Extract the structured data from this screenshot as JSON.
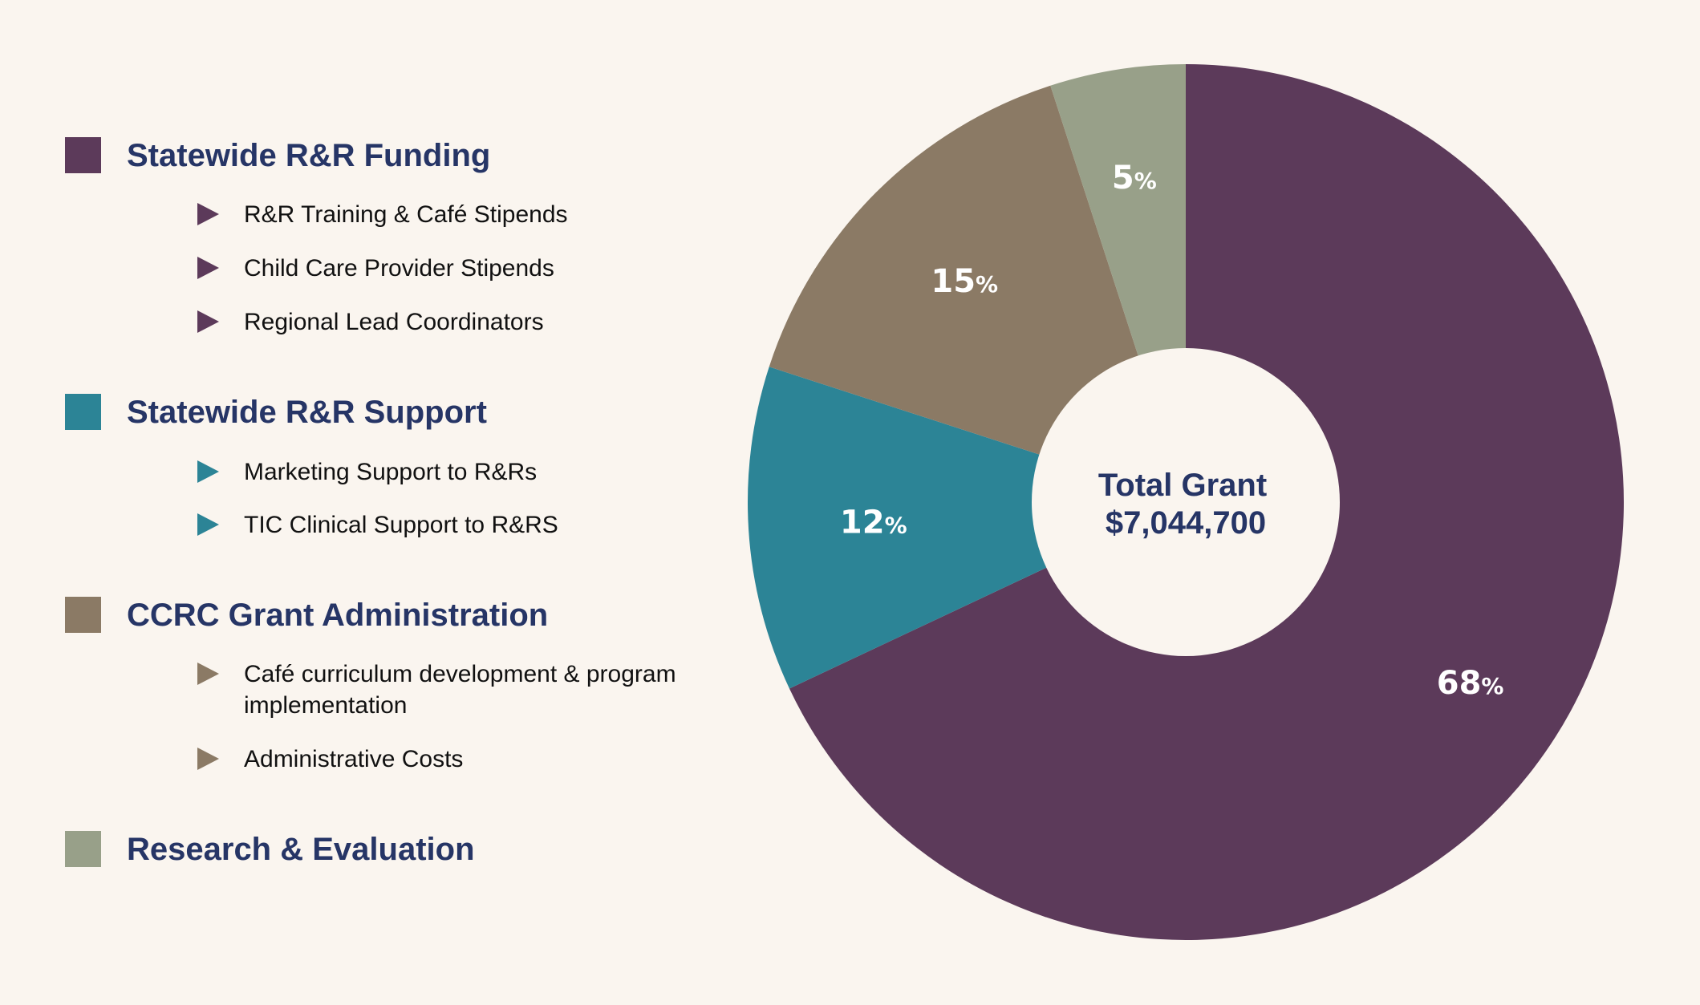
{
  "legend": [
    {
      "title": "Statewide R&R Funding",
      "color": "#5c3a5a",
      "items": [
        "R&R Training & Café Stipends",
        "Child Care Provider Stipends",
        "Regional Lead Coordinators"
      ]
    },
    {
      "title": "Statewide R&R Support",
      "color": "#2c8496",
      "items": [
        "Marketing Support to R&Rs",
        "TIC Clinical Support to R&RS"
      ]
    },
    {
      "title": "CCRC Grant Administration",
      "color": "#8b7a65",
      "items": [
        "Café curriculum development & program implementation",
        "Administrative Costs"
      ]
    },
    {
      "title": "Research & Evaluation",
      "color": "#98a089",
      "items": []
    }
  ],
  "chart_data": {
    "type": "pie",
    "donut": true,
    "start": "top",
    "direction": "clockwise",
    "categories": [
      "Statewide R&R Funding",
      "Statewide R&R Support",
      "CCRC Grant Administration",
      "Research & Evaluation"
    ],
    "values": [
      68,
      12,
      15,
      5
    ],
    "value_labels": [
      "68",
      "12",
      "15",
      "5"
    ],
    "unit": "%",
    "colors": [
      "#5c3a5a",
      "#2c8496",
      "#8b7a65",
      "#98a089"
    ],
    "center_label": {
      "title": "Total Grant",
      "value": "$7,044,700"
    }
  }
}
